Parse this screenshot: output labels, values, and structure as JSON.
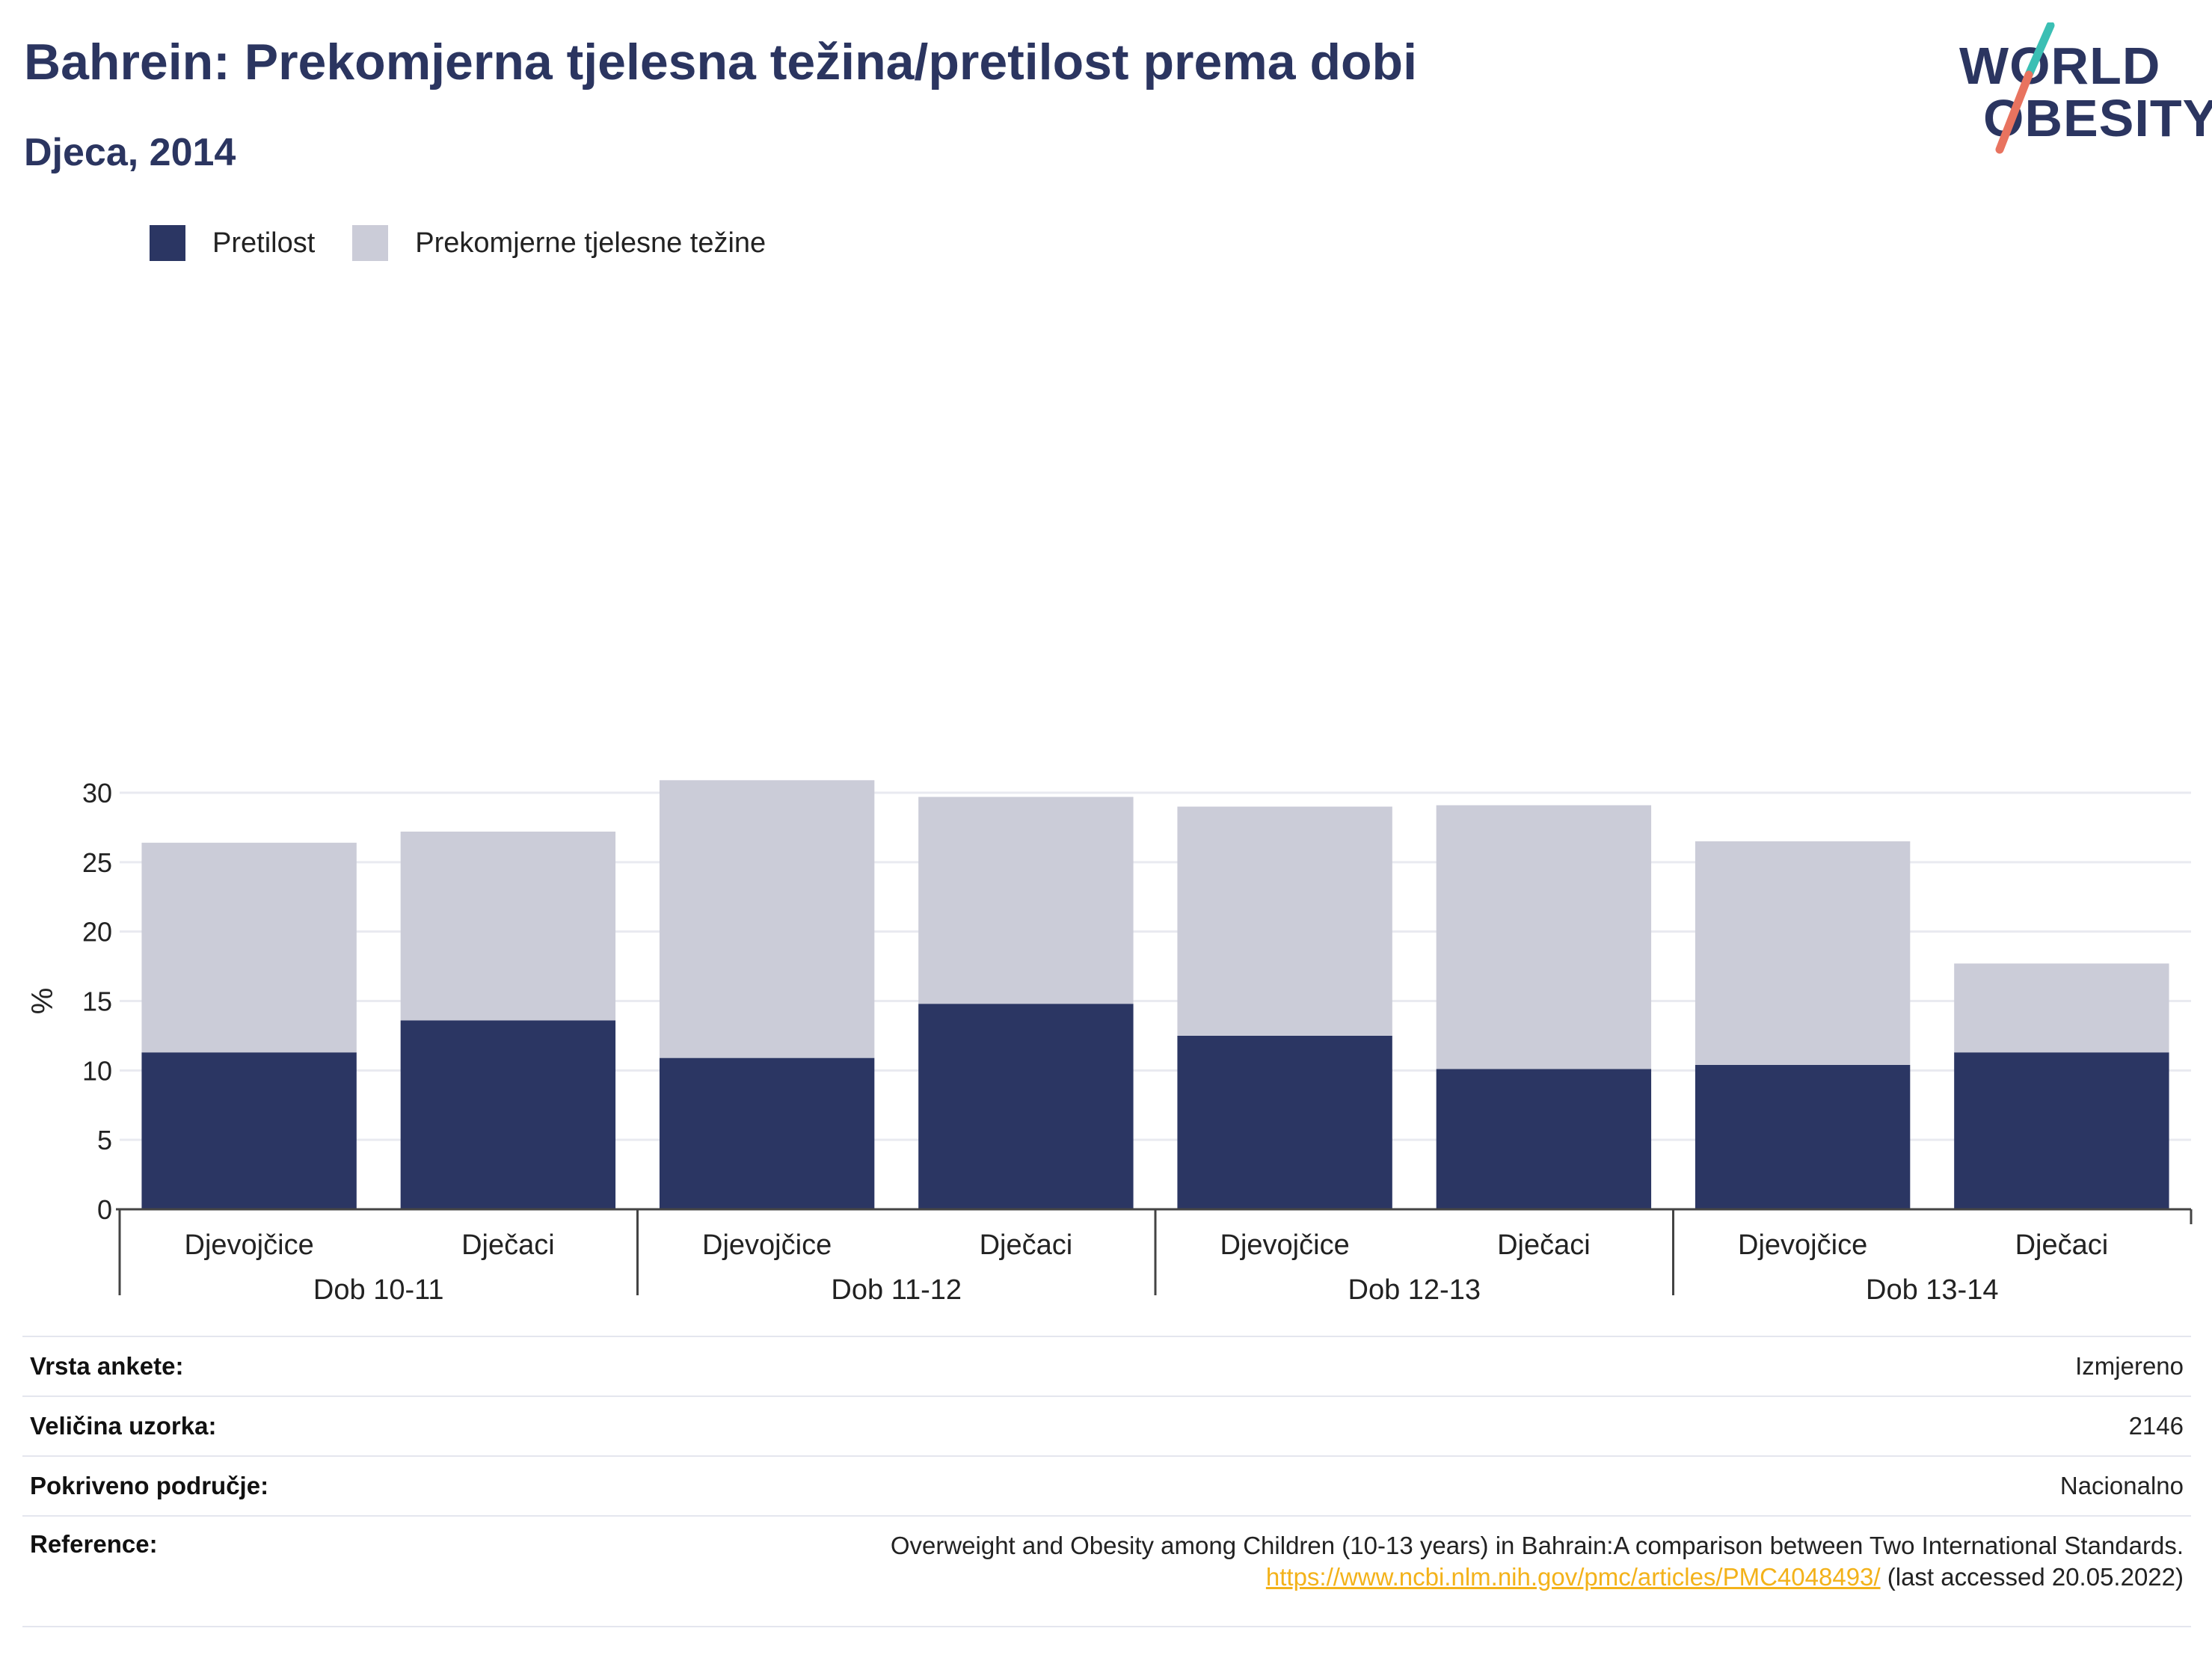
{
  "header": {
    "title": "Bahrein: Prekomjerna tjelesna težina/pretilost prema dobi",
    "subtitle": "Djeca, 2014"
  },
  "logo": {
    "line1": "WORLD",
    "line2": "OBESITY"
  },
  "legend": [
    {
      "label": "Pretilost",
      "color": "#2b3663"
    },
    {
      "label": "Prekomjerne tjelesne težine",
      "color": "#cbccd8"
    }
  ],
  "chart_data": {
    "type": "bar",
    "stacked": true,
    "ylabel": "%",
    "ylim": [
      0,
      32
    ],
    "yticks": [
      0,
      5,
      10,
      15,
      20,
      25,
      30
    ],
    "grid": true,
    "legend_position": "top-left",
    "groups": [
      "Dob 10-11",
      "Dob 11-12",
      "Dob 12-13",
      "Dob 13-14"
    ],
    "categories": [
      "Djevojčice",
      "Dječaci",
      "Djevojčice",
      "Dječaci",
      "Djevojčice",
      "Dječaci",
      "Djevojčice",
      "Dječaci"
    ],
    "series": [
      {
        "name": "Pretilost",
        "color": "#2b3663",
        "values": [
          11.3,
          13.6,
          10.9,
          14.8,
          12.5,
          10.1,
          10.4,
          11.3
        ]
      },
      {
        "name": "Prekomjerne tjelesne težine",
        "color": "#cbccd8",
        "values": [
          15.1,
          13.6,
          20.0,
          14.9,
          16.5,
          19.0,
          16.1,
          6.4
        ]
      }
    ]
  },
  "info": [
    {
      "label": "Vrsta ankete:",
      "value": "Izmjereno"
    },
    {
      "label": "Veličina uzorka:",
      "value": "2146"
    },
    {
      "label": "Pokriveno područje:",
      "value": "Nacionalno"
    }
  ],
  "reference": {
    "label": "Reference:",
    "text": "Overweight and Obesity among Children (10-13 years) in Bahrain:A comparison between Two International Standards.",
    "link": "https://www.ncbi.nlm.nih.gov/pmc/articles/PMC4048493/",
    "accessed": " (last accessed 20.05.2022)"
  }
}
